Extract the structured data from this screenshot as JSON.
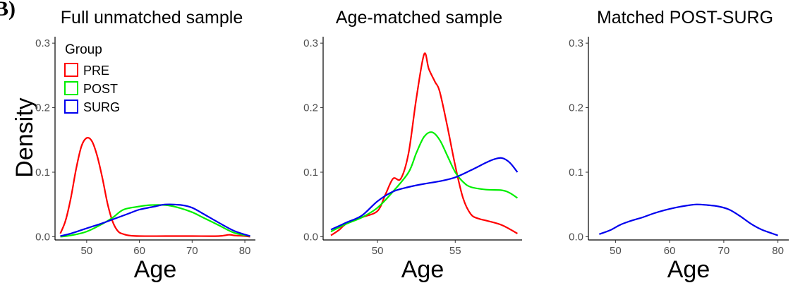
{
  "figure": {
    "tag": "B)",
    "ylabel": "Density",
    "legend": {
      "title": "Group"
    }
  },
  "colors": {
    "PRE": "#ff0000",
    "POST": "#00ee00",
    "SURG": "#0000ee",
    "axis": "#000000",
    "tick_text": "#4d4d4d"
  },
  "chart_data": [
    {
      "type": "line",
      "title": "Full unmatched sample",
      "xlabel": "Age",
      "ylabel": "Density",
      "xlim": [
        44,
        82
      ],
      "ylim": [
        -0.005,
        0.31
      ],
      "xticks": [
        50,
        60,
        70,
        80
      ],
      "yticks": [
        0.0,
        0.1,
        0.2,
        0.3
      ],
      "legend": {
        "title": "Group",
        "position": "top-left",
        "entries": [
          "PRE",
          "POST",
          "SURG"
        ]
      },
      "series": [
        {
          "name": "PRE",
          "x": [
            45,
            46,
            47,
            48,
            49,
            50,
            51,
            52,
            53,
            54,
            55,
            56,
            57,
            58,
            60,
            65,
            70,
            75,
            77,
            78,
            80,
            81
          ],
          "y": [
            0.005,
            0.025,
            0.06,
            0.105,
            0.14,
            0.153,
            0.148,
            0.125,
            0.09,
            0.05,
            0.022,
            0.008,
            0.004,
            0.002,
            0.001,
            0.001,
            0.001,
            0.001,
            0.003,
            0.002,
            0.001,
            0.0
          ]
        },
        {
          "name": "POST",
          "x": [
            45,
            47,
            50,
            53,
            55,
            57,
            60,
            62,
            65,
            67,
            70,
            72,
            75,
            78,
            81
          ],
          "y": [
            0.0,
            0.002,
            0.008,
            0.02,
            0.03,
            0.042,
            0.047,
            0.049,
            0.049,
            0.046,
            0.038,
            0.03,
            0.018,
            0.006,
            0.001
          ]
        },
        {
          "name": "SURG",
          "x": [
            45,
            47,
            50,
            53,
            55,
            58,
            60,
            63,
            65,
            68,
            70,
            72,
            75,
            78,
            81
          ],
          "y": [
            0.001,
            0.005,
            0.013,
            0.021,
            0.027,
            0.036,
            0.042,
            0.047,
            0.05,
            0.049,
            0.045,
            0.036,
            0.022,
            0.009,
            0.001
          ]
        }
      ]
    },
    {
      "type": "line",
      "title": "Age-matched sample",
      "xlabel": "Age",
      "ylabel": "Density",
      "xlim": [
        46.5,
        59.3
      ],
      "ylim": [
        -0.005,
        0.31
      ],
      "xticks": [
        50,
        55
      ],
      "yticks": [
        0.0,
        0.1,
        0.2,
        0.3
      ],
      "series": [
        {
          "name": "PRE",
          "x": [
            47,
            47.5,
            48,
            49,
            50,
            50.5,
            51,
            51.5,
            52,
            52.5,
            53,
            53.3,
            53.7,
            54,
            54.5,
            55,
            55.5,
            56,
            56.5,
            57,
            58,
            59
          ],
          "y": [
            0.002,
            0.01,
            0.02,
            0.03,
            0.04,
            0.065,
            0.09,
            0.09,
            0.13,
            0.215,
            0.283,
            0.26,
            0.24,
            0.225,
            0.17,
            0.11,
            0.06,
            0.035,
            0.028,
            0.025,
            0.018,
            0.005
          ]
        },
        {
          "name": "POST",
          "x": [
            47,
            48,
            49,
            50,
            51,
            52,
            52.5,
            53,
            53.5,
            54,
            54.5,
            55,
            55.5,
            56,
            57,
            58,
            58.5,
            59
          ],
          "y": [
            0.008,
            0.02,
            0.03,
            0.045,
            0.07,
            0.1,
            0.13,
            0.155,
            0.162,
            0.15,
            0.125,
            0.1,
            0.085,
            0.077,
            0.073,
            0.072,
            0.068,
            0.06
          ]
        },
        {
          "name": "SURG",
          "x": [
            47,
            48,
            49,
            50,
            51,
            52,
            53,
            54,
            55,
            56,
            57,
            57.5,
            58,
            58.5,
            59
          ],
          "y": [
            0.011,
            0.022,
            0.033,
            0.055,
            0.07,
            0.077,
            0.082,
            0.086,
            0.092,
            0.103,
            0.115,
            0.12,
            0.122,
            0.115,
            0.1
          ]
        }
      ]
    },
    {
      "type": "line",
      "title": "Matched POST-SURG",
      "xlabel": "Age",
      "ylabel": "Density",
      "xlim": [
        45,
        82
      ],
      "ylim": [
        -0.005,
        0.31
      ],
      "xticks": [
        50,
        60,
        70,
        80
      ],
      "yticks": [
        0.0,
        0.1,
        0.2,
        0.3
      ],
      "series": [
        {
          "name": "SURG",
          "x": [
            47,
            49,
            51,
            53,
            55,
            57,
            59,
            61,
            63,
            65,
            67,
            69,
            71,
            73,
            75,
            77,
            80
          ],
          "y": [
            0.004,
            0.01,
            0.019,
            0.025,
            0.03,
            0.036,
            0.041,
            0.045,
            0.048,
            0.05,
            0.049,
            0.047,
            0.042,
            0.032,
            0.02,
            0.011,
            0.002
          ]
        }
      ]
    }
  ]
}
